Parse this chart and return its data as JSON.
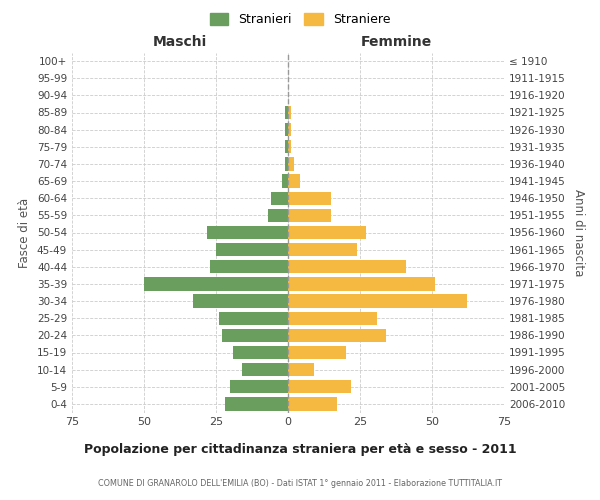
{
  "age_groups": [
    "0-4",
    "5-9",
    "10-14",
    "15-19",
    "20-24",
    "25-29",
    "30-34",
    "35-39",
    "40-44",
    "45-49",
    "50-54",
    "55-59",
    "60-64",
    "65-69",
    "70-74",
    "75-79",
    "80-84",
    "85-89",
    "90-94",
    "95-99",
    "100+"
  ],
  "birth_years": [
    "2006-2010",
    "2001-2005",
    "1996-2000",
    "1991-1995",
    "1986-1990",
    "1981-1985",
    "1976-1980",
    "1971-1975",
    "1966-1970",
    "1961-1965",
    "1956-1960",
    "1951-1955",
    "1946-1950",
    "1941-1945",
    "1936-1940",
    "1931-1935",
    "1926-1930",
    "1921-1925",
    "1916-1920",
    "1911-1915",
    "≤ 1910"
  ],
  "maschi": [
    22,
    20,
    16,
    19,
    23,
    24,
    33,
    50,
    27,
    25,
    28,
    7,
    6,
    2,
    1,
    1,
    1,
    1,
    0,
    0,
    0
  ],
  "femmine": [
    17,
    22,
    9,
    20,
    34,
    31,
    62,
    51,
    41,
    24,
    27,
    15,
    15,
    4,
    2,
    1,
    1,
    1,
    0,
    0,
    0
  ],
  "maschi_color": "#6a9e5e",
  "femmine_color": "#f5b942",
  "bg_color": "#ffffff",
  "grid_color": "#cccccc",
  "title": "Popolazione per cittadinanza straniera per età e sesso - 2011",
  "subtitle": "COMUNE DI GRANAROLO DELL'EMILIA (BO) - Dati ISTAT 1° gennaio 2011 - Elaborazione TUTTITALIA.IT",
  "xlabel_left": "Maschi",
  "xlabel_right": "Femmine",
  "ylabel_left": "Fasce di età",
  "ylabel_right": "Anni di nascita",
  "legend_maschi": "Stranieri",
  "legend_femmine": "Straniere",
  "xlim": 75
}
